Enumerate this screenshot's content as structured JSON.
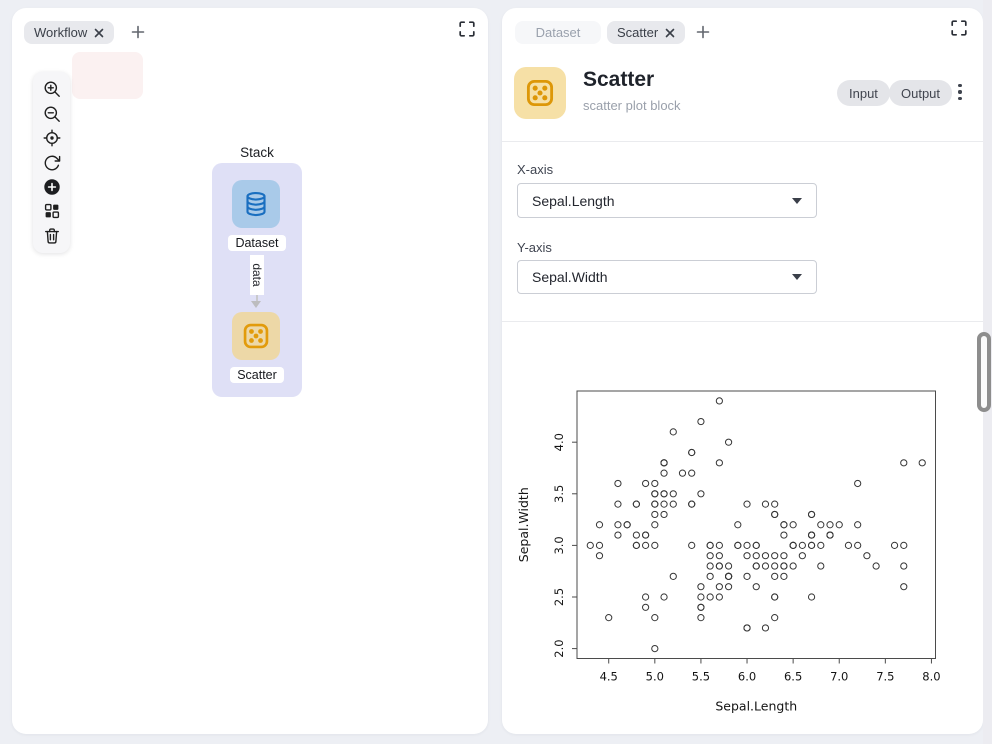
{
  "left_panel": {
    "tabs": [
      {
        "label": "Workflow",
        "closable": true
      }
    ],
    "new_tab_button": "+",
    "toolbar": {
      "items": [
        {
          "icon": "zoom-in"
        },
        {
          "icon": "zoom-out"
        },
        {
          "icon": "center-target"
        },
        {
          "icon": "reset-view"
        },
        {
          "icon": "add-node"
        },
        {
          "icon": "blocks"
        },
        {
          "icon": "delete-trash"
        }
      ]
    },
    "canvas": {
      "stack_label": "Stack",
      "nodes": [
        {
          "label": "Dataset",
          "icon": "database",
          "color": "#a9cae9"
        },
        {
          "label": "Scatter",
          "icon": "scatter-dice",
          "color": "#edd8a7"
        }
      ],
      "edge_label": "data"
    }
  },
  "right_panel": {
    "tabs": [
      {
        "label": "Dataset",
        "closable": false
      },
      {
        "label": "Scatter",
        "closable": true
      }
    ],
    "new_tab_button": "+",
    "header": {
      "title": "Scatter",
      "subtitle": "scatter plot block",
      "icon": "scatter-dice",
      "actions": [
        {
          "label": "Input"
        },
        {
          "label": "Output"
        }
      ],
      "menu_icon": "kebab-menu"
    },
    "form": {
      "x_axis": {
        "label": "X-axis",
        "value": "Sepal.Length"
      },
      "y_axis": {
        "label": "Y-axis",
        "value": "Sepal.Width"
      }
    }
  },
  "colors": {
    "accent_blue": "#1a6fc0",
    "accent_orange": "#e29b0b",
    "node_blue_bg": "#a9cae9",
    "node_orange_bg": "#edd8a7",
    "stack_bg": "#dfe0f6",
    "pill_bg": "#e4e5e9",
    "tab_active_bg": "#e8e9ed",
    "tab_inactive_text": "#9aa1ad",
    "pink_highlight": "#fbf1f1"
  },
  "chart_data": {
    "type": "scatter",
    "title": "",
    "xlabel": "Sepal.Length",
    "ylabel": "Sepal.Width",
    "xlim": [
      4.156,
      8.044
    ],
    "ylim": [
      1.904,
      4.496
    ],
    "xticks": [
      4.5,
      5.0,
      5.5,
      6.0,
      6.5,
      7.0,
      7.5,
      8.0
    ],
    "yticks": [
      2.0,
      2.5,
      3.0,
      3.5,
      4.0
    ],
    "grid": false,
    "marker": "open-circle",
    "points": [
      [
        5.1,
        3.5
      ],
      [
        4.9,
        3.0
      ],
      [
        4.7,
        3.2
      ],
      [
        4.6,
        3.1
      ],
      [
        5.0,
        3.6
      ],
      [
        5.4,
        3.9
      ],
      [
        4.6,
        3.4
      ],
      [
        5.0,
        3.4
      ],
      [
        4.4,
        2.9
      ],
      [
        4.9,
        3.1
      ],
      [
        5.4,
        3.7
      ],
      [
        4.8,
        3.4
      ],
      [
        4.8,
        3.0
      ],
      [
        4.3,
        3.0
      ],
      [
        5.8,
        4.0
      ],
      [
        5.7,
        4.4
      ],
      [
        5.4,
        3.9
      ],
      [
        5.1,
        3.5
      ],
      [
        5.7,
        3.8
      ],
      [
        5.1,
        3.8
      ],
      [
        5.4,
        3.4
      ],
      [
        5.1,
        3.7
      ],
      [
        4.6,
        3.6
      ],
      [
        5.1,
        3.3
      ],
      [
        4.8,
        3.4
      ],
      [
        5.0,
        3.0
      ],
      [
        5.0,
        3.4
      ],
      [
        5.2,
        3.5
      ],
      [
        5.2,
        3.4
      ],
      [
        4.7,
        3.2
      ],
      [
        4.8,
        3.1
      ],
      [
        5.4,
        3.4
      ],
      [
        5.2,
        4.1
      ],
      [
        5.5,
        4.2
      ],
      [
        4.9,
        3.1
      ],
      [
        5.0,
        3.2
      ],
      [
        5.5,
        3.5
      ],
      [
        4.9,
        3.6
      ],
      [
        4.4,
        3.0
      ],
      [
        5.1,
        3.4
      ],
      [
        5.0,
        3.5
      ],
      [
        4.5,
        2.3
      ],
      [
        4.4,
        3.2
      ],
      [
        5.0,
        3.5
      ],
      [
        5.1,
        3.8
      ],
      [
        4.8,
        3.0
      ],
      [
        5.1,
        3.8
      ],
      [
        4.6,
        3.2
      ],
      [
        5.3,
        3.7
      ],
      [
        5.0,
        3.3
      ],
      [
        7.0,
        3.2
      ],
      [
        6.4,
        3.2
      ],
      [
        6.9,
        3.1
      ],
      [
        5.5,
        2.3
      ],
      [
        6.5,
        2.8
      ],
      [
        5.7,
        2.8
      ],
      [
        6.3,
        3.3
      ],
      [
        4.9,
        2.4
      ],
      [
        6.6,
        2.9
      ],
      [
        5.2,
        2.7
      ],
      [
        5.0,
        2.0
      ],
      [
        5.9,
        3.0
      ],
      [
        6.0,
        2.2
      ],
      [
        6.1,
        2.9
      ],
      [
        5.6,
        2.9
      ],
      [
        6.7,
        3.1
      ],
      [
        5.6,
        3.0
      ],
      [
        5.8,
        2.7
      ],
      [
        6.2,
        2.2
      ],
      [
        5.6,
        2.5
      ],
      [
        5.9,
        3.2
      ],
      [
        6.1,
        2.8
      ],
      [
        6.3,
        2.5
      ],
      [
        6.1,
        2.8
      ],
      [
        6.4,
        2.9
      ],
      [
        6.6,
        3.0
      ],
      [
        6.8,
        2.8
      ],
      [
        6.7,
        3.0
      ],
      [
        6.0,
        2.9
      ],
      [
        5.7,
        2.6
      ],
      [
        5.5,
        2.4
      ],
      [
        5.5,
        2.4
      ],
      [
        5.8,
        2.7
      ],
      [
        6.0,
        2.7
      ],
      [
        5.4,
        3.0
      ],
      [
        6.0,
        3.4
      ],
      [
        6.7,
        3.1
      ],
      [
        6.3,
        2.3
      ],
      [
        5.6,
        3.0
      ],
      [
        5.5,
        2.5
      ],
      [
        5.5,
        2.6
      ],
      [
        6.1,
        3.0
      ],
      [
        5.8,
        2.6
      ],
      [
        5.0,
        2.3
      ],
      [
        5.6,
        2.7
      ],
      [
        5.7,
        3.0
      ],
      [
        5.7,
        2.9
      ],
      [
        6.2,
        2.9
      ],
      [
        5.1,
        2.5
      ],
      [
        5.7,
        2.8
      ],
      [
        6.3,
        3.3
      ],
      [
        5.8,
        2.7
      ],
      [
        7.1,
        3.0
      ],
      [
        6.3,
        2.9
      ],
      [
        6.5,
        3.0
      ],
      [
        7.6,
        3.0
      ],
      [
        4.9,
        2.5
      ],
      [
        7.3,
        2.9
      ],
      [
        6.7,
        2.5
      ],
      [
        7.2,
        3.6
      ],
      [
        6.5,
        3.2
      ],
      [
        6.4,
        2.7
      ],
      [
        6.8,
        3.0
      ],
      [
        5.7,
        2.5
      ],
      [
        5.8,
        2.8
      ],
      [
        6.4,
        3.2
      ],
      [
        6.5,
        3.0
      ],
      [
        7.7,
        3.8
      ],
      [
        7.7,
        2.6
      ],
      [
        6.0,
        2.2
      ],
      [
        6.9,
        3.2
      ],
      [
        5.6,
        2.8
      ],
      [
        7.7,
        2.8
      ],
      [
        6.3,
        2.7
      ],
      [
        6.7,
        3.3
      ],
      [
        7.2,
        3.2
      ],
      [
        6.2,
        2.8
      ],
      [
        6.1,
        3.0
      ],
      [
        6.4,
        2.8
      ],
      [
        7.2,
        3.0
      ],
      [
        7.4,
        2.8
      ],
      [
        7.9,
        3.8
      ],
      [
        6.4,
        2.8
      ],
      [
        6.3,
        2.8
      ],
      [
        6.1,
        2.6
      ],
      [
        7.7,
        3.0
      ],
      [
        6.3,
        3.4
      ],
      [
        6.4,
        3.1
      ],
      [
        6.0,
        3.0
      ],
      [
        6.9,
        3.1
      ],
      [
        6.7,
        3.1
      ],
      [
        6.9,
        3.1
      ],
      [
        5.8,
        2.7
      ],
      [
        6.8,
        3.2
      ],
      [
        6.7,
        3.3
      ],
      [
        6.7,
        3.0
      ],
      [
        6.3,
        2.5
      ],
      [
        6.5,
        3.0
      ],
      [
        6.2,
        3.4
      ],
      [
        5.9,
        3.0
      ]
    ]
  }
}
